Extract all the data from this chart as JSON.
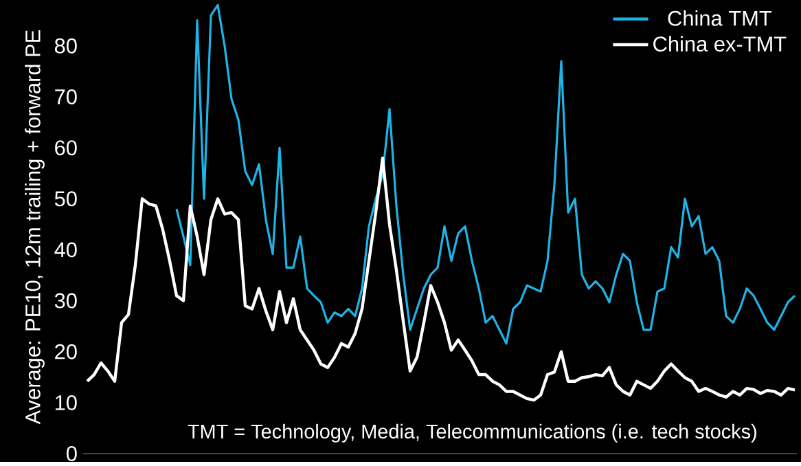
{
  "chart_data": {
    "type": "line",
    "ylabel": "Average: PE10, 12m trailing + forward PE",
    "annotations": [
      "TMT = Technology, Media, Telecommunications  (i.e. tech stocks)"
    ],
    "categories": [
      null,
      null,
      null,
      null,
      null,
      null,
      null,
      null,
      null,
      null,
      null,
      null,
      null,
      null,
      null,
      null,
      null,
      null,
      null,
      null,
      null,
      null,
      null,
      null,
      null,
      null,
      null,
      null,
      null,
      null,
      null,
      null,
      null,
      null,
      null,
      null,
      null,
      null,
      null,
      null,
      null,
      null,
      null,
      null,
      null,
      null,
      null,
      null,
      null,
      null,
      null,
      null,
      null,
      null,
      null,
      null,
      null,
      null,
      null,
      null,
      null,
      null,
      null,
      null,
      null,
      null,
      null,
      null,
      null,
      null,
      null,
      null,
      null,
      null,
      null,
      null,
      null,
      null,
      null,
      null,
      null,
      null,
      null,
      null,
      null,
      null,
      null,
      null,
      null,
      null,
      null,
      null,
      null,
      null,
      null,
      null,
      null,
      null,
      null,
      null,
      null,
      null,
      null,
      null
    ],
    "series": [
      {
        "name": "China TMT",
        "color": "#1fb4e8",
        "values": [
          null,
          null,
          null,
          null,
          null,
          null,
          null,
          null,
          null,
          null,
          null,
          null,
          null,
          48,
          42.6,
          37,
          85,
          50,
          86,
          88,
          80,
          69.6,
          65.5,
          55.4,
          52.7,
          56.8,
          45.9,
          39.2,
          60,
          36.5,
          36.5,
          42.6,
          32.4,
          31,
          29.7,
          25.7,
          27.7,
          27,
          28.4,
          27,
          32.4,
          44.6,
          50,
          54.7,
          67.6,
          48.6,
          35.1,
          24.3,
          28.4,
          32.4,
          35.1,
          36.5,
          44.6,
          37.8,
          43.2,
          44.6,
          37.8,
          32.4,
          25.7,
          27,
          24.3,
          21.6,
          28.4,
          29.7,
          33,
          32.4,
          31.8,
          37.8,
          52.7,
          77,
          47.3,
          50,
          35.1,
          32.4,
          33.8,
          32.4,
          29.7,
          35.1,
          39.2,
          37.8,
          29.7,
          24.3,
          24.3,
          31.8,
          32.4,
          40.5,
          38.5,
          50,
          44.6,
          46.6,
          39.2,
          40.5,
          37.8,
          27,
          25.7,
          28.4,
          32.4,
          31,
          28.4,
          25.7,
          24.3,
          27,
          29.7,
          31
        ]
      },
      {
        "name": "China ex-TMT",
        "color": "#ffffff",
        "values": [
          14.2,
          15.5,
          17.8,
          16.2,
          14.2,
          25.7,
          27.3,
          37,
          50,
          49,
          48.6,
          43.9,
          37.8,
          31,
          30,
          48.6,
          42.6,
          35.1,
          45.9,
          50,
          47,
          47.3,
          45.9,
          29,
          28.4,
          32.4,
          28,
          24.3,
          31.8,
          25.7,
          30.4,
          24.3,
          22.3,
          20.3,
          17.6,
          16.9,
          18.9,
          21.6,
          20.9,
          23.6,
          28.4,
          37.8,
          47.3,
          58,
          45,
          36,
          26,
          16.2,
          18.9,
          25.7,
          33,
          29.7,
          25.7,
          20.3,
          22.3,
          20.3,
          18.2,
          15.5,
          15.5,
          14.2,
          13.5,
          12.2,
          12.2,
          11.5,
          10.8,
          10.5,
          11.5,
          15.5,
          16,
          20,
          14.2,
          14.2,
          14.9,
          15.1,
          15.5,
          15.3,
          16.9,
          13.5,
          12.2,
          11.5,
          14.2,
          13.5,
          12.8,
          14.2,
          16.2,
          17.6,
          16.2,
          14.9,
          14.2,
          12.2,
          12.8,
          12.2,
          11.5,
          11.1,
          12.2,
          11.5,
          12.8,
          12.6,
          11.8,
          12.4,
          12.2,
          11.5,
          12.8,
          12.5
        ]
      }
    ],
    "ylim": [
      0,
      89
    ],
    "yticks": [
      0,
      10,
      20,
      30,
      40,
      50,
      60,
      70,
      80
    ],
    "legend": "top right"
  }
}
